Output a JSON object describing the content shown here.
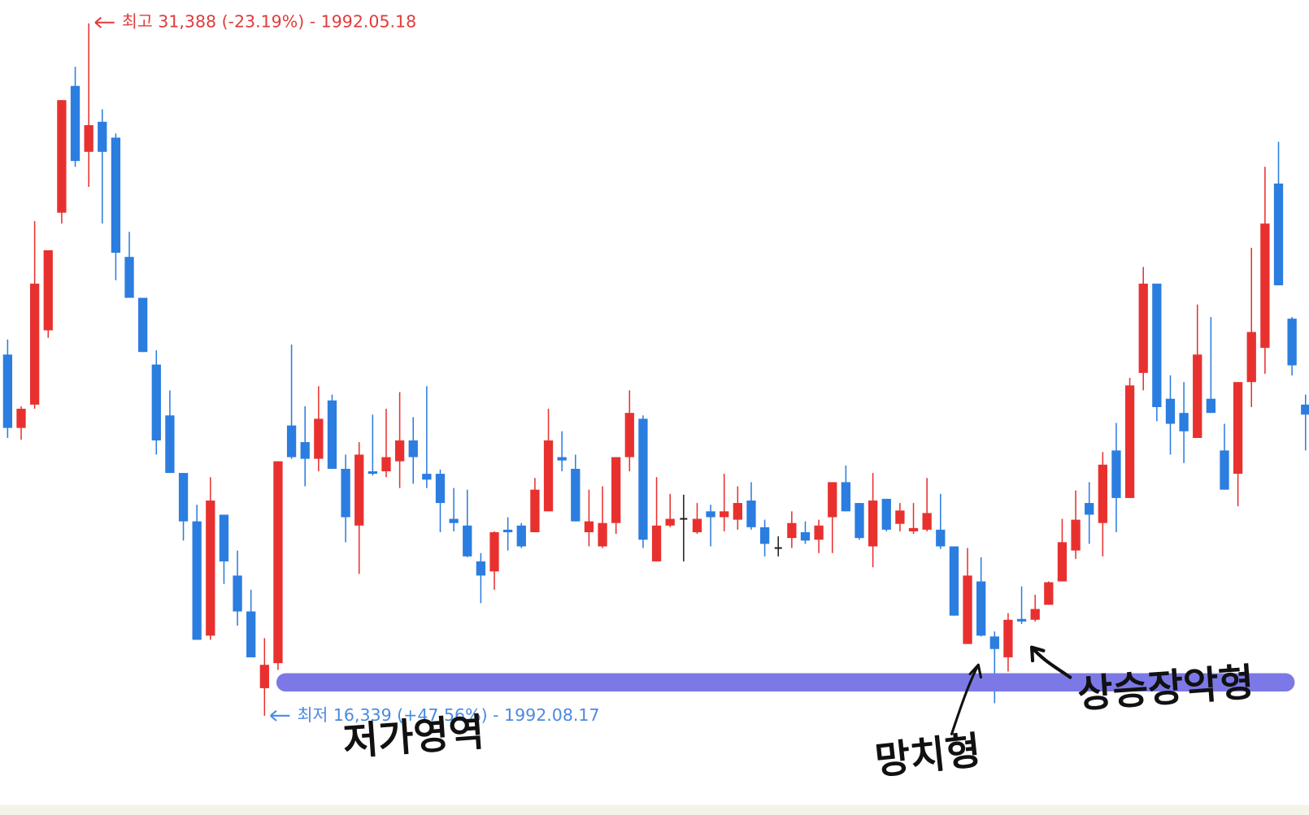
{
  "chart_data": {
    "type": "candlestick",
    "up_color": "#e8312f",
    "down_color": "#2b7de0",
    "flat_color": "#222222",
    "ylim": [
      14182,
      31896
    ],
    "open": [
      24190,
      22595,
      23102,
      24716,
      27273,
      30028,
      28596,
      29249,
      28904,
      26312,
      25423,
      23973,
      22867,
      21616,
      20564,
      18080,
      20709,
      19386,
      18606,
      16938,
      17482,
      22649,
      22287,
      21924,
      23193,
      21706,
      20473,
      21652,
      21652,
      21870,
      22323,
      21598,
      21598,
      20619,
      20473,
      19694,
      19476,
      20383,
      20473,
      20328,
      20782,
      21960,
      21706,
      20328,
      20020,
      20528,
      21960,
      22794,
      19694,
      20473,
      20619,
      20328,
      20782,
      20655,
      20600,
      21017,
      20437,
      19984,
      20202,
      20328,
      20165,
      20655,
      21416,
      20963,
      20020,
      21054,
      20510,
      20347,
      20383,
      20383,
      20020,
      17899,
      19259,
      18062,
      17609,
      18443,
      18425,
      18751,
      19259,
      19930,
      20963,
      20528,
      22105,
      21072,
      23791,
      25731,
      23229,
      22921,
      22377,
      23229,
      22105,
      21598,
      23592,
      24335,
      27907,
      24970,
      23102
    ],
    "high": [
      24517,
      23066,
      27091,
      26457,
      29720,
      30445,
      31388,
      29521,
      28995,
      26856,
      25423,
      24281,
      23411,
      21616,
      20927,
      21525,
      20709,
      19930,
      19077,
      18026,
      21870,
      24408,
      23066,
      23501,
      23320,
      22015,
      22287,
      22885,
      23012,
      23374,
      22830,
      23501,
      21688,
      21289,
      21253,
      19875,
      20347,
      20655,
      20528,
      21507,
      23012,
      22522,
      22015,
      21253,
      21326,
      21960,
      23411,
      22867,
      21525,
      21162,
      21144,
      20963,
      20927,
      21598,
      21326,
      21416,
      20600,
      20238,
      20782,
      20564,
      20600,
      21416,
      21779,
      20963,
      21616,
      21054,
      20963,
      20963,
      21507,
      21162,
      20020,
      19984,
      19784,
      18171,
      18570,
      19150,
      18969,
      19259,
      20619,
      21235,
      21416,
      22069,
      22704,
      23683,
      26094,
      25731,
      23737,
      23592,
      25278,
      25006,
      22685,
      23592,
      26511,
      28270,
      28814,
      25006,
      23320
    ],
    "low": [
      22377,
      22341,
      23012,
      24553,
      27037,
      28270,
      27835,
      27037,
      25804,
      25423,
      24245,
      22015,
      21616,
      20147,
      17990,
      17990,
      19204,
      18298,
      17609,
      16339,
      17337,
      21924,
      21326,
      21652,
      21706,
      20111,
      19422,
      21561,
      21525,
      21289,
      21380,
      21289,
      20328,
      20347,
      19784,
      18787,
      19077,
      19930,
      19984,
      20328,
      20782,
      21652,
      20564,
      20020,
      19984,
      20292,
      21652,
      19984,
      19694,
      20437,
      19694,
      20292,
      20020,
      20347,
      20383,
      20383,
      19803,
      19803,
      19984,
      20075,
      19875,
      19875,
      20782,
      20165,
      19567,
      20347,
      20347,
      20292,
      20347,
      19966,
      18515,
      17899,
      18062,
      16612,
      17301,
      18334,
      18388,
      18751,
      19259,
      19748,
      20075,
      19803,
      20328,
      21072,
      23411,
      22740,
      22015,
      21833,
      22377,
      22921,
      21253,
      20890,
      23048,
      23773,
      25695,
      23737,
      22105
    ],
    "close": [
      22595,
      23012,
      25731,
      26457,
      29720,
      28397,
      29176,
      28596,
      26402,
      25423,
      24245,
      22323,
      21616,
      20564,
      17990,
      21017,
      19694,
      18606,
      17609,
      17446,
      21870,
      21960,
      21924,
      22794,
      21706,
      20655,
      22015,
      21598,
      21960,
      22323,
      21960,
      21471,
      20963,
      20528,
      19803,
      19386,
      20328,
      20328,
      20020,
      21253,
      22323,
      21888,
      20564,
      20564,
      20528,
      21960,
      22921,
      20165,
      20473,
      20619,
      20619,
      20619,
      20655,
      20782,
      20963,
      20437,
      20075,
      19984,
      20528,
      20147,
      20473,
      21416,
      20782,
      20202,
      21017,
      20383,
      20800,
      20419,
      20745,
      20020,
      18515,
      19386,
      18080,
      17790,
      18425,
      18388,
      18660,
      19241,
      20111,
      20600,
      20709,
      21797,
      21072,
      23519,
      25731,
      23048,
      22685,
      22522,
      24190,
      22921,
      21253,
      23592,
      24680,
      27037,
      25695,
      23955,
      22885
    ],
    "high_label": "최고 31,388 (-23.19%) - 1992.05.18",
    "low_label": "최저 16,339 (+47.56%) - 1992.08.17",
    "high_label_color": "#e23b3b",
    "low_label_color": "#4a8ae0",
    "support_level": 17065,
    "support_color": "#7c79e6",
    "annotations": [
      "저가영역",
      "망치형",
      "상승장악형"
    ]
  }
}
